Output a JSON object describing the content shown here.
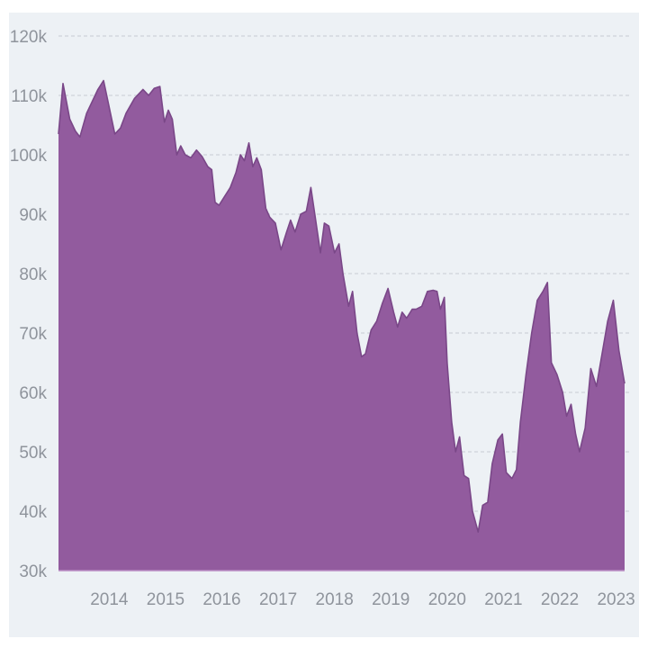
{
  "chart_data": {
    "type": "area",
    "title": "",
    "xlabel": "",
    "ylabel": "",
    "grid": true,
    "legend": "none",
    "colors": {
      "background": "#edf1f5",
      "fill": "#925b9e",
      "stroke": "#7a4788",
      "grid": "#d3d8de",
      "tick_text": "#8f949c"
    },
    "ylim": [
      30000,
      120000
    ],
    "xlim": [
      2013.1,
      2023.15
    ],
    "y_ticks": [
      {
        "value": 30000,
        "label": "30k"
      },
      {
        "value": 40000,
        "label": "40k"
      },
      {
        "value": 50000,
        "label": "50k"
      },
      {
        "value": 60000,
        "label": "60k"
      },
      {
        "value": 70000,
        "label": "70k"
      },
      {
        "value": 80000,
        "label": "80k"
      },
      {
        "value": 90000,
        "label": "90k"
      },
      {
        "value": 100000,
        "label": "100k"
      },
      {
        "value": 110000,
        "label": "110k"
      },
      {
        "value": 120000,
        "label": "120k"
      }
    ],
    "x_ticks": [
      {
        "value": 2014,
        "label": "2014"
      },
      {
        "value": 2015,
        "label": "2015"
      },
      {
        "value": 2016,
        "label": "2016"
      },
      {
        "value": 2017,
        "label": "2017"
      },
      {
        "value": 2018,
        "label": "2018"
      },
      {
        "value": 2019,
        "label": "2019"
      },
      {
        "value": 2020,
        "label": "2020"
      },
      {
        "value": 2021,
        "label": "2021"
      },
      {
        "value": 2022,
        "label": "2022"
      },
      {
        "value": 2023,
        "label": "2023"
      }
    ],
    "series": [
      {
        "name": "Series 1",
        "points": [
          [
            2013.1,
            103500
          ],
          [
            2013.18,
            112000
          ],
          [
            2013.3,
            106000
          ],
          [
            2013.4,
            104000
          ],
          [
            2013.48,
            103000
          ],
          [
            2013.6,
            107000
          ],
          [
            2013.7,
            109000
          ],
          [
            2013.8,
            111000
          ],
          [
            2013.9,
            112500
          ],
          [
            2014.0,
            108000
          ],
          [
            2014.1,
            103500
          ],
          [
            2014.2,
            104500
          ],
          [
            2014.3,
            107000
          ],
          [
            2014.45,
            109500
          ],
          [
            2014.6,
            111000
          ],
          [
            2014.7,
            110000
          ],
          [
            2014.8,
            111200
          ],
          [
            2014.9,
            111500
          ],
          [
            2014.98,
            105500
          ],
          [
            2015.05,
            107500
          ],
          [
            2015.12,
            106000
          ],
          [
            2015.2,
            100000
          ],
          [
            2015.27,
            101500
          ],
          [
            2015.35,
            100000
          ],
          [
            2015.45,
            99500
          ],
          [
            2015.55,
            100800
          ],
          [
            2015.65,
            99700
          ],
          [
            2015.75,
            98000
          ],
          [
            2015.82,
            97500
          ],
          [
            2015.88,
            92000
          ],
          [
            2015.95,
            91500
          ],
          [
            2016.05,
            93000
          ],
          [
            2016.15,
            94500
          ],
          [
            2016.25,
            97000
          ],
          [
            2016.33,
            100000
          ],
          [
            2016.4,
            99000
          ],
          [
            2016.48,
            102000
          ],
          [
            2016.55,
            98000
          ],
          [
            2016.62,
            99500
          ],
          [
            2016.7,
            97500
          ],
          [
            2016.78,
            91000
          ],
          [
            2016.85,
            89500
          ],
          [
            2016.95,
            88500
          ],
          [
            2017.05,
            84000
          ],
          [
            2017.15,
            87000
          ],
          [
            2017.22,
            89000
          ],
          [
            2017.3,
            87000
          ],
          [
            2017.4,
            90000
          ],
          [
            2017.5,
            90500
          ],
          [
            2017.58,
            94500
          ],
          [
            2017.65,
            90000
          ],
          [
            2017.75,
            83500
          ],
          [
            2017.82,
            88500
          ],
          [
            2017.9,
            88000
          ],
          [
            2018.0,
            83500
          ],
          [
            2018.08,
            85000
          ],
          [
            2018.15,
            80000
          ],
          [
            2018.25,
            74500
          ],
          [
            2018.32,
            77000
          ],
          [
            2018.4,
            70000
          ],
          [
            2018.48,
            66000
          ],
          [
            2018.55,
            66500
          ],
          [
            2018.65,
            70500
          ],
          [
            2018.75,
            72000
          ],
          [
            2018.85,
            75000
          ],
          [
            2018.95,
            77500
          ],
          [
            2019.05,
            73500
          ],
          [
            2019.12,
            71000
          ],
          [
            2019.2,
            73500
          ],
          [
            2019.28,
            72500
          ],
          [
            2019.38,
            74000
          ],
          [
            2019.45,
            74000
          ],
          [
            2019.55,
            74500
          ],
          [
            2019.65,
            77000
          ],
          [
            2019.75,
            77200
          ],
          [
            2019.82,
            77000
          ],
          [
            2019.88,
            74000
          ],
          [
            2019.95,
            76000
          ],
          [
            2020.0,
            65000
          ],
          [
            2020.08,
            55000
          ],
          [
            2020.15,
            50000
          ],
          [
            2020.22,
            52500
          ],
          [
            2020.3,
            46000
          ],
          [
            2020.38,
            45500
          ],
          [
            2020.45,
            40000
          ],
          [
            2020.55,
            36500
          ],
          [
            2020.63,
            41000
          ],
          [
            2020.72,
            41500
          ],
          [
            2020.8,
            48000
          ],
          [
            2020.9,
            52000
          ],
          [
            2020.98,
            53000
          ],
          [
            2021.05,
            46500
          ],
          [
            2021.15,
            45500
          ],
          [
            2021.23,
            47000
          ],
          [
            2021.3,
            55000
          ],
          [
            2021.4,
            63000
          ],
          [
            2021.5,
            70000
          ],
          [
            2021.6,
            75500
          ],
          [
            2021.7,
            77000
          ],
          [
            2021.78,
            78500
          ],
          [
            2021.85,
            65000
          ],
          [
            2021.95,
            63000
          ],
          [
            2022.05,
            60000
          ],
          [
            2022.12,
            56000
          ],
          [
            2022.2,
            58000
          ],
          [
            2022.28,
            53000
          ],
          [
            2022.35,
            50000
          ],
          [
            2022.45,
            54000
          ],
          [
            2022.55,
            64000
          ],
          [
            2022.65,
            61000
          ],
          [
            2022.75,
            66500
          ],
          [
            2022.85,
            72000
          ],
          [
            2022.95,
            75500
          ],
          [
            2023.05,
            67000
          ],
          [
            2023.15,
            61500
          ]
        ]
      }
    ]
  }
}
